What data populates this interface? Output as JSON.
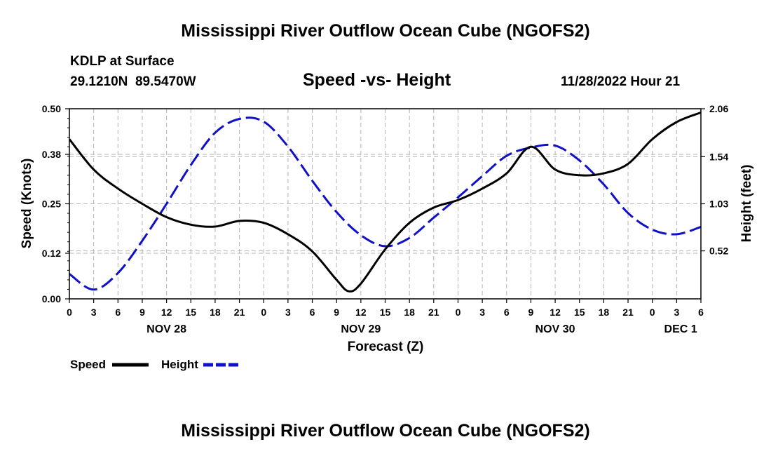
{
  "page": {
    "title": "Mississippi River Outflow Ocean Cube (NGOFS2)",
    "title_repeat": "Mississippi River Outflow Ocean Cube (NGOFS2)"
  },
  "header": {
    "station": "KDLP at Surface",
    "lat": "29.1210N",
    "lon": "89.5470W",
    "timestamp": "11/28/2022 Hour 21"
  },
  "colors": {
    "speed": "#000000",
    "height": "#1010c8",
    "grid": "#b4b4b4"
  },
  "chart_data": {
    "type": "line",
    "title": "Speed -vs- Height",
    "xlabel": "Forecast (Z)",
    "ylabel": "Speed (Knots)",
    "y2label": "Height (feet)",
    "x_range": [
      0,
      78
    ],
    "x_ticks": [
      0,
      3,
      6,
      9,
      12,
      15,
      18,
      21,
      24,
      27,
      30,
      33,
      36,
      39,
      42,
      45,
      48,
      51,
      54,
      57,
      60,
      63,
      66,
      69,
      72,
      75,
      78
    ],
    "x_tick_labels": [
      "0",
      "3",
      "6",
      "9",
      "12",
      "15",
      "18",
      "21",
      "0",
      "3",
      "6",
      "9",
      "12",
      "15",
      "18",
      "21",
      "0",
      "3",
      "6",
      "9",
      "12",
      "15",
      "18",
      "21",
      "0",
      "3",
      "6"
    ],
    "day_labels": [
      {
        "x": 12,
        "label": "NOV 28"
      },
      {
        "x": 36,
        "label": "NOV 29"
      },
      {
        "x": 60,
        "label": "NOV 30"
      },
      {
        "x": 75.5,
        "label": "DEC 1"
      }
    ],
    "ylim": [
      0,
      0.5
    ],
    "yticks": [
      0.0,
      0.12,
      0.25,
      0.38,
      0.5
    ],
    "ytick_labels": [
      "0.00",
      "0.12",
      "0.25",
      "0.38",
      "0.50"
    ],
    "y2lim": [
      0,
      2.06
    ],
    "y2ticks": [
      0.52,
      1.03,
      1.54,
      2.06
    ],
    "y2tick_labels": [
      "0.52",
      "1.03",
      "1.54",
      "2.06"
    ],
    "legend": [
      {
        "name": "Speed",
        "style": "solid"
      },
      {
        "name": "Height",
        "style": "dashed"
      }
    ],
    "series": [
      {
        "name": "Speed",
        "axis": "left",
        "x": [
          0,
          3,
          6,
          9,
          12,
          15,
          18,
          21,
          24,
          27,
          30,
          33,
          34.5,
          36,
          39,
          42,
          45,
          48,
          51,
          54,
          57,
          60,
          63,
          66,
          69,
          72,
          75,
          78
        ],
        "values": [
          0.42,
          0.34,
          0.29,
          0.25,
          0.215,
          0.195,
          0.19,
          0.205,
          0.2,
          0.17,
          0.125,
          0.05,
          0.02,
          0.04,
          0.13,
          0.2,
          0.24,
          0.26,
          0.29,
          0.33,
          0.4,
          0.34,
          0.325,
          0.33,
          0.355,
          0.42,
          0.465,
          0.49
        ]
      },
      {
        "name": "Height",
        "axis": "right",
        "x": [
          0,
          3,
          6,
          9,
          12,
          15,
          18,
          21,
          24,
          27,
          30,
          33,
          36,
          39,
          42,
          45,
          48,
          51,
          54,
          57,
          60,
          63,
          66,
          69,
          72,
          75,
          78
        ],
        "values": [
          0.27,
          0.1,
          0.28,
          0.63,
          1.03,
          1.45,
          1.8,
          1.95,
          1.92,
          1.65,
          1.28,
          0.94,
          0.69,
          0.57,
          0.66,
          0.88,
          1.1,
          1.33,
          1.55,
          1.64,
          1.66,
          1.5,
          1.24,
          0.93,
          0.75,
          0.7,
          0.78
        ]
      }
    ]
  }
}
